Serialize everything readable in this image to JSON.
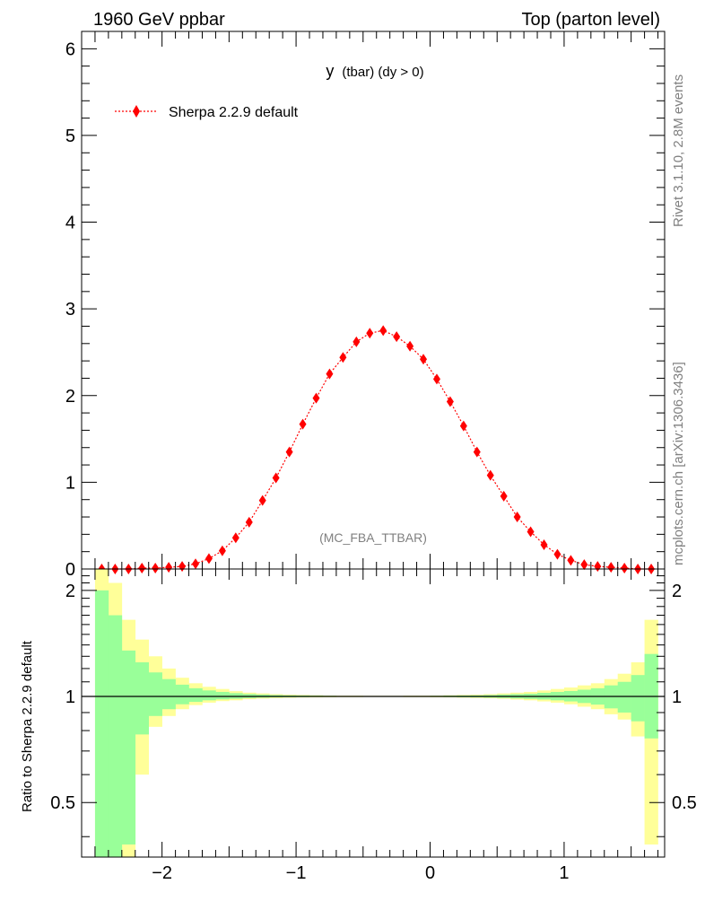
{
  "header": {
    "left": "1960 GeV ppbar",
    "right": "Top (parton level)"
  },
  "side": {
    "rivet": "Rivet 3.1.10,  2.8M events",
    "mcplots": "mcplots.cern.ch [arXiv:1306.3436]"
  },
  "colors": {
    "series": "#ff0000",
    "band_inner": "#99ff99",
    "band_outer": "#ffff99",
    "axis": "#000000",
    "watermark": "#808080"
  },
  "chart_data": [
    {
      "type": "line",
      "panel": "main",
      "title_main": "y",
      "title_sub": "(tbar) (dy > 0)",
      "watermark": "(MC_FBA_TTBAR)",
      "xlim": [
        -2.6,
        1.75
      ],
      "ylim": [
        0,
        6.2
      ],
      "y_ticks": [
        0,
        1,
        2,
        3,
        4,
        5,
        6
      ],
      "y_tick_labels": [
        "0",
        "1",
        "2",
        "3",
        "4",
        "5",
        "6"
      ],
      "legend_placement": "top-left",
      "series": [
        {
          "name": "Sherpa 2.2.9 default",
          "marker": "diamond",
          "line": "dotted",
          "x": [
            -2.45,
            -2.35,
            -2.25,
            -2.15,
            -2.05,
            -1.95,
            -1.85,
            -1.75,
            -1.65,
            -1.55,
            -1.45,
            -1.35,
            -1.25,
            -1.15,
            -1.05,
            -0.95,
            -0.85,
            -0.75,
            -0.65,
            -0.55,
            -0.45,
            -0.35,
            -0.25,
            -0.15,
            -0.05,
            0.05,
            0.15,
            0.25,
            0.35,
            0.45,
            0.55,
            0.65,
            0.75,
            0.85,
            0.95,
            1.05,
            1.15,
            1.25,
            1.35,
            1.45,
            1.55,
            1.65
          ],
          "y": [
            0.0,
            0.0,
            0.0,
            0.01,
            0.01,
            0.02,
            0.03,
            0.06,
            0.12,
            0.21,
            0.36,
            0.54,
            0.79,
            1.05,
            1.35,
            1.67,
            1.97,
            2.25,
            2.44,
            2.62,
            2.72,
            2.75,
            2.68,
            2.57,
            2.42,
            2.19,
            1.93,
            1.65,
            1.35,
            1.08,
            0.84,
            0.6,
            0.43,
            0.28,
            0.17,
            0.1,
            0.05,
            0.03,
            0.02,
            0.01,
            0.0,
            0.0
          ]
        }
      ]
    },
    {
      "type": "area",
      "panel": "ratio",
      "ylabel": "Ratio to Sherpa 2.2.9 default",
      "xlim": [
        -2.6,
        1.75
      ],
      "ylim": [
        0.35,
        2.3
      ],
      "x_ticks": [
        -2,
        -1,
        0,
        1
      ],
      "x_tick_labels": [
        "−2",
        "−1",
        "0",
        "1"
      ],
      "y_ticks": [
        0.5,
        1,
        2
      ],
      "y_tick_labels": [
        "0.5",
        "1",
        "2"
      ],
      "reference_line": 1,
      "bin_edges": [
        -2.5,
        -2.4,
        -2.3,
        -2.2,
        -2.1,
        -2.0,
        -1.9,
        -1.8,
        -1.7,
        -1.6,
        -1.5,
        -1.4,
        -1.3,
        -1.2,
        -1.1,
        -1.0,
        -0.9,
        -0.8,
        -0.7,
        -0.6,
        -0.5,
        -0.4,
        -0.3,
        -0.2,
        -0.1,
        0.0,
        0.1,
        0.2,
        0.3,
        0.4,
        0.5,
        0.6,
        0.7,
        0.8,
        0.9,
        1.0,
        1.1,
        1.2,
        1.3,
        1.4,
        1.5,
        1.6,
        1.7
      ],
      "outer_upper": [
        2.3,
        2.1,
        1.65,
        1.45,
        1.3,
        1.2,
        1.13,
        1.09,
        1.065,
        1.05,
        1.035,
        1.025,
        1.02,
        1.015,
        1.012,
        1.01,
        1.008,
        1.006,
        1.005,
        1.005,
        1.004,
        1.004,
        1.004,
        1.005,
        1.005,
        1.006,
        1.008,
        1.01,
        1.012,
        1.015,
        1.02,
        1.025,
        1.03,
        1.04,
        1.05,
        1.06,
        1.075,
        1.09,
        1.12,
        1.16,
        1.25,
        1.65
      ],
      "outer_lower": [
        0.35,
        0.35,
        0.35,
        0.6,
        0.82,
        0.88,
        0.92,
        0.945,
        0.96,
        0.97,
        0.975,
        0.982,
        0.986,
        0.989,
        0.991,
        0.993,
        0.994,
        0.995,
        0.996,
        0.996,
        0.997,
        0.997,
        0.997,
        0.996,
        0.996,
        0.995,
        0.994,
        0.992,
        0.99,
        0.988,
        0.985,
        0.98,
        0.975,
        0.968,
        0.96,
        0.95,
        0.935,
        0.92,
        0.89,
        0.86,
        0.77,
        0.38
      ],
      "inner_upper": [
        2.0,
        1.7,
        1.35,
        1.25,
        1.17,
        1.12,
        1.08,
        1.055,
        1.04,
        1.03,
        1.022,
        1.016,
        1.012,
        1.009,
        1.007,
        1.006,
        1.005,
        1.004,
        1.003,
        1.003,
        1.002,
        1.002,
        1.002,
        1.003,
        1.003,
        1.004,
        1.005,
        1.006,
        1.007,
        1.009,
        1.012,
        1.015,
        1.018,
        1.024,
        1.03,
        1.036,
        1.045,
        1.055,
        1.075,
        1.1,
        1.15,
        1.32
      ],
      "inner_lower": [
        0.35,
        0.35,
        0.38,
        0.78,
        0.88,
        0.92,
        0.95,
        0.965,
        0.975,
        0.981,
        0.985,
        0.989,
        0.992,
        0.994,
        0.995,
        0.996,
        0.997,
        0.997,
        0.998,
        0.998,
        0.998,
        0.998,
        0.998,
        0.998,
        0.998,
        0.997,
        0.996,
        0.995,
        0.994,
        0.992,
        0.99,
        0.987,
        0.984,
        0.98,
        0.975,
        0.968,
        0.958,
        0.948,
        0.925,
        0.9,
        0.85,
        0.76
      ]
    }
  ]
}
